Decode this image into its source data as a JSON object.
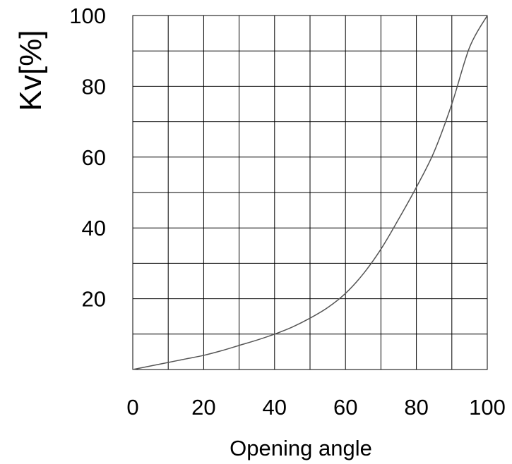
{
  "chart_data": {
    "type": "line",
    "title": "",
    "xlabel": "Opening angle",
    "ylabel": "Kv[%]",
    "xlim": [
      0,
      100
    ],
    "ylim": [
      0,
      100
    ],
    "grid": true,
    "x_ticks": [
      0,
      20,
      40,
      60,
      80,
      100
    ],
    "y_ticks": [
      20,
      40,
      60,
      80,
      100
    ],
    "x_tick_labels": [
      "0",
      "20",
      "40",
      "60",
      "80",
      "100"
    ],
    "y_tick_labels": [
      "20",
      "40",
      "60",
      "80",
      "100"
    ],
    "series": [
      {
        "x": [
          0,
          5,
          10,
          15,
          20,
          25,
          30,
          35,
          40,
          45,
          50,
          55,
          60,
          65,
          70,
          75,
          80,
          85,
          90,
          95,
          100
        ],
        "y": [
          0,
          1,
          2,
          3,
          4,
          5.3,
          6.8,
          8.3,
          10,
          12,
          14.5,
          17.5,
          21.5,
          27,
          34,
          42.5,
          51.5,
          61.5,
          75,
          91,
          100
        ],
        "color": "#555555"
      }
    ]
  }
}
